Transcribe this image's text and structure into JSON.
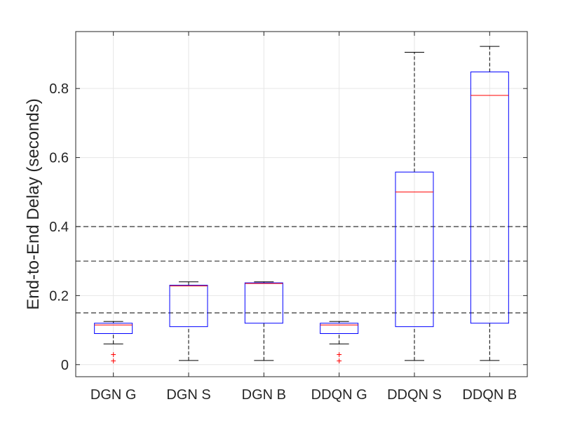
{
  "chart_data": {
    "type": "boxplot",
    "ylabel": "End-to-End Delay (seconds)",
    "xlabel": "",
    "title": "",
    "ylim": [
      -0.035,
      0.965
    ],
    "yticks": [
      0,
      0.2,
      0.4,
      0.6,
      0.8
    ],
    "ytick_labels": [
      "0",
      "0.2",
      "0.4",
      "0.6",
      "0.8"
    ],
    "grid": true,
    "categories": [
      "DGN G",
      "DGN S",
      "DGN B",
      "DDQN G",
      "DDQN S",
      "DDQN B"
    ],
    "boxes": [
      {
        "label": "DGN G",
        "whisker_low": 0.06,
        "q1": 0.09,
        "median": 0.115,
        "q3": 0.12,
        "whisker_high": 0.125,
        "outliers": [
          0.03,
          0.012
        ]
      },
      {
        "label": "DGN S",
        "whisker_low": 0.012,
        "q1": 0.11,
        "median": 0.228,
        "q3": 0.23,
        "whisker_high": 0.24,
        "outliers": []
      },
      {
        "label": "DGN B",
        "whisker_low": 0.012,
        "q1": 0.12,
        "median": 0.235,
        "q3": 0.237,
        "whisker_high": 0.24,
        "outliers": []
      },
      {
        "label": "DDQN G",
        "whisker_low": 0.06,
        "q1": 0.09,
        "median": 0.115,
        "q3": 0.12,
        "whisker_high": 0.125,
        "outliers": [
          0.03,
          0.012
        ]
      },
      {
        "label": "DDQN S",
        "whisker_low": 0.012,
        "q1": 0.11,
        "median": 0.5,
        "q3": 0.558,
        "whisker_high": 0.905,
        "outliers": []
      },
      {
        "label": "DDQN B",
        "whisker_low": 0.012,
        "q1": 0.12,
        "median": 0.78,
        "q3": 0.848,
        "whisker_high": 0.922,
        "outliers": []
      }
    ],
    "reference_lines": [
      0.15,
      0.3,
      0.4
    ],
    "colors": {
      "box": "#0000ff",
      "median": "#ff0000",
      "whisker": "#000000",
      "outlier": "#ff0000",
      "reference_line": "#333333",
      "grid": "#e6e6e6",
      "axis": "#262626"
    }
  }
}
